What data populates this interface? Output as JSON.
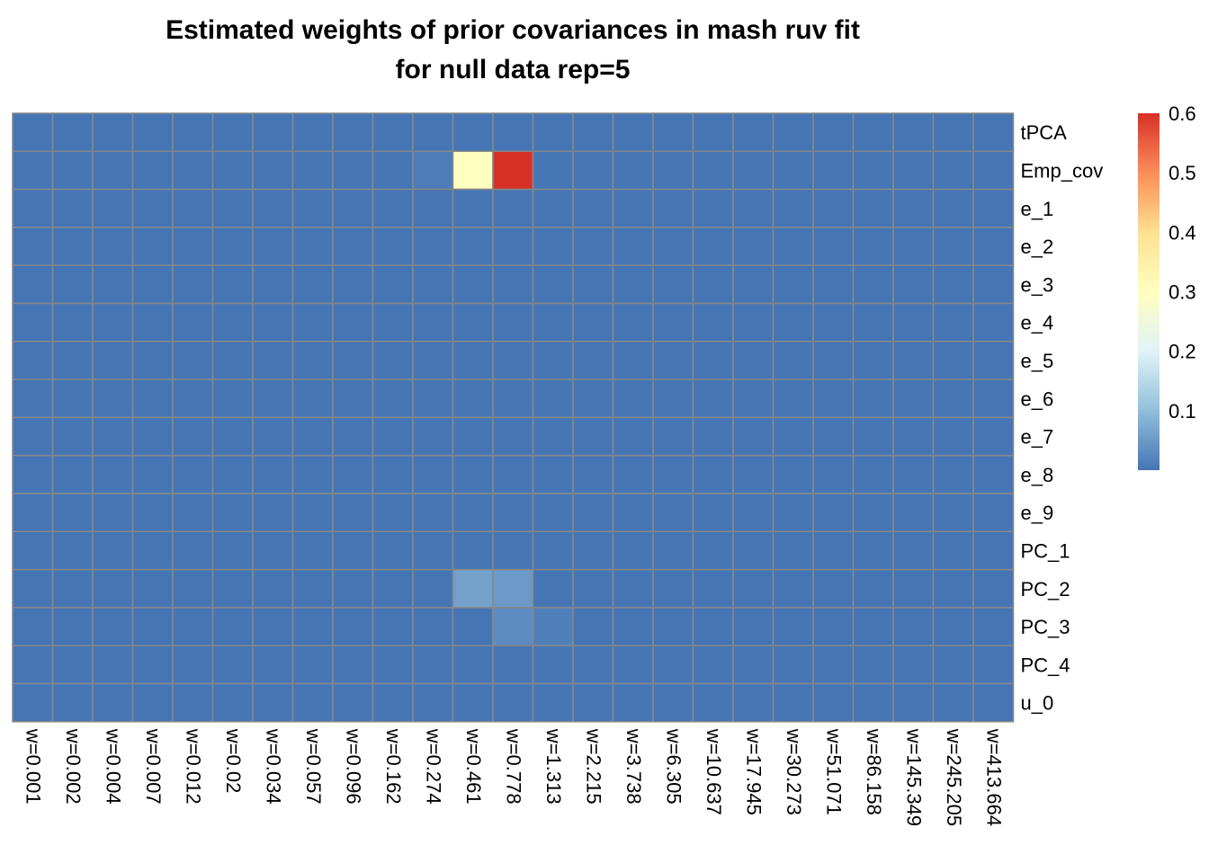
{
  "chart_data": {
    "type": "heatmap",
    "title": "Estimated weights of prior covariances in mash ruv fit\nfor null data rep=5",
    "columns": [
      "w=0.001",
      "w=0.002",
      "w=0.004",
      "w=0.007",
      "w=0.012",
      "w=0.02",
      "w=0.034",
      "w=0.057",
      "w=0.096",
      "w=0.162",
      "w=0.274",
      "w=0.461",
      "w=0.778",
      "w=1.313",
      "w=2.215",
      "w=3.738",
      "w=6.305",
      "w=10.637",
      "w=17.945",
      "w=30.273",
      "w=51.071",
      "w=86.158",
      "w=145.349",
      "w=245.205",
      "w=413.664"
    ],
    "rows": [
      "tPCA",
      "Emp_cov",
      "e_1",
      "e_2",
      "e_3",
      "e_4",
      "e_5",
      "e_6",
      "e_7",
      "e_8",
      "e_9",
      "PC_1",
      "PC_2",
      "PC_3",
      "PC_4",
      "u_0"
    ],
    "values": [
      [
        0,
        0,
        0,
        0,
        0,
        0,
        0,
        0,
        0,
        0,
        0,
        0,
        0,
        0,
        0,
        0,
        0,
        0,
        0,
        0,
        0,
        0,
        0,
        0,
        0
      ],
      [
        0,
        0,
        0,
        0,
        0,
        0,
        0,
        0,
        0,
        0,
        0.01,
        0.3,
        0.6,
        0,
        0,
        0,
        0,
        0,
        0,
        0,
        0,
        0,
        0,
        0,
        0
      ],
      [
        0,
        0,
        0,
        0,
        0,
        0,
        0,
        0,
        0,
        0,
        0,
        0,
        0,
        0,
        0,
        0,
        0,
        0,
        0,
        0,
        0,
        0,
        0,
        0,
        0
      ],
      [
        0,
        0,
        0,
        0,
        0,
        0,
        0,
        0,
        0,
        0,
        0,
        0,
        0,
        0,
        0,
        0,
        0,
        0,
        0,
        0,
        0,
        0,
        0,
        0,
        0
      ],
      [
        0,
        0,
        0,
        0,
        0,
        0,
        0,
        0,
        0,
        0,
        0,
        0,
        0,
        0,
        0,
        0,
        0,
        0,
        0,
        0,
        0,
        0,
        0,
        0,
        0
      ],
      [
        0,
        0,
        0,
        0,
        0,
        0,
        0,
        0,
        0,
        0,
        0,
        0,
        0,
        0,
        0,
        0,
        0,
        0,
        0,
        0,
        0,
        0,
        0,
        0,
        0
      ],
      [
        0,
        0,
        0,
        0,
        0,
        0,
        0,
        0,
        0,
        0,
        0,
        0,
        0,
        0,
        0,
        0,
        0,
        0,
        0,
        0,
        0,
        0,
        0,
        0,
        0
      ],
      [
        0,
        0,
        0,
        0,
        0,
        0,
        0,
        0,
        0,
        0,
        0,
        0,
        0,
        0,
        0,
        0,
        0,
        0,
        0,
        0,
        0,
        0,
        0,
        0,
        0
      ],
      [
        0,
        0,
        0,
        0,
        0,
        0,
        0,
        0,
        0,
        0,
        0,
        0,
        0,
        0,
        0,
        0,
        0,
        0,
        0,
        0,
        0,
        0,
        0,
        0,
        0
      ],
      [
        0,
        0,
        0,
        0,
        0,
        0,
        0,
        0,
        0,
        0,
        0,
        0,
        0,
        0,
        0,
        0,
        0,
        0,
        0,
        0,
        0,
        0,
        0,
        0,
        0
      ],
      [
        0,
        0,
        0,
        0,
        0,
        0,
        0,
        0,
        0,
        0,
        0,
        0,
        0,
        0,
        0,
        0,
        0,
        0,
        0,
        0,
        0,
        0,
        0,
        0,
        0
      ],
      [
        0,
        0,
        0,
        0,
        0,
        0,
        0,
        0,
        0,
        0,
        0,
        0,
        0,
        0,
        0,
        0,
        0,
        0,
        0,
        0,
        0,
        0,
        0,
        0,
        0
      ],
      [
        0,
        0,
        0,
        0,
        0,
        0,
        0,
        0,
        0,
        0,
        0,
        0.06,
        0.05,
        0,
        0,
        0,
        0,
        0,
        0,
        0,
        0,
        0,
        0,
        0,
        0
      ],
      [
        0,
        0,
        0,
        0,
        0,
        0,
        0,
        0,
        0,
        0,
        0,
        0,
        0.03,
        0.015,
        0,
        0,
        0,
        0,
        0,
        0,
        0,
        0,
        0,
        0,
        0
      ],
      [
        0,
        0,
        0,
        0,
        0,
        0,
        0,
        0,
        0,
        0,
        0,
        0,
        0,
        0,
        0,
        0,
        0,
        0,
        0,
        0,
        0,
        0,
        0,
        0,
        0
      ],
      [
        0,
        0,
        0,
        0,
        0,
        0,
        0,
        0,
        0,
        0,
        0,
        0,
        0,
        0,
        0,
        0,
        0,
        0,
        0,
        0,
        0,
        0,
        0,
        0,
        0
      ]
    ],
    "colorbar": {
      "ticks": [
        "0.1",
        "0.2",
        "0.3",
        "0.4",
        "0.5",
        "0.6"
      ],
      "range": [
        0,
        0.6
      ],
      "colors": [
        "#4575B4",
        "#91BFDB",
        "#E0F3F8",
        "#FFFFBF",
        "#FEE090",
        "#FC8D59",
        "#D73027"
      ]
    }
  }
}
